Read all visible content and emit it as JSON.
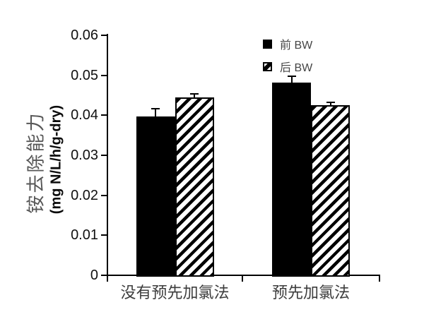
{
  "chart_data": {
    "type": "bar",
    "title": "",
    "categories": [
      "没有预先加氯法",
      "预先加氯法"
    ],
    "series": [
      {
        "name": "前 BW",
        "marker": "solid",
        "values": [
          0.0397,
          0.0482
        ],
        "errors": [
          0.002,
          0.0015
        ]
      },
      {
        "name": "后 BW",
        "marker": "hatch",
        "values": [
          0.0445,
          0.0425
        ],
        "errors": [
          0.0008,
          0.0007
        ]
      }
    ],
    "ylabel_cn": "铵去除能力",
    "ylabel_unit": "(mg N/L/h/g-dry)",
    "xlabel": "",
    "ylim": [
      0,
      0.06
    ],
    "ytick_values": [
      0,
      0.01,
      0.02,
      0.03,
      0.04,
      0.05,
      0.06
    ],
    "ytick_labels": [
      "0",
      "0.01",
      "0.02",
      "0.03",
      "0.04",
      "0.05",
      "0.06"
    ],
    "legend_position": "top-right",
    "grid": false,
    "error_bars": "upper-whisker-with-cap",
    "colors": {
      "bar_fill": "#000000",
      "axis": "#000000",
      "tick_label": "#101010",
      "cjk_text": "#3d3d3d",
      "legend_text": "#454545"
    }
  }
}
